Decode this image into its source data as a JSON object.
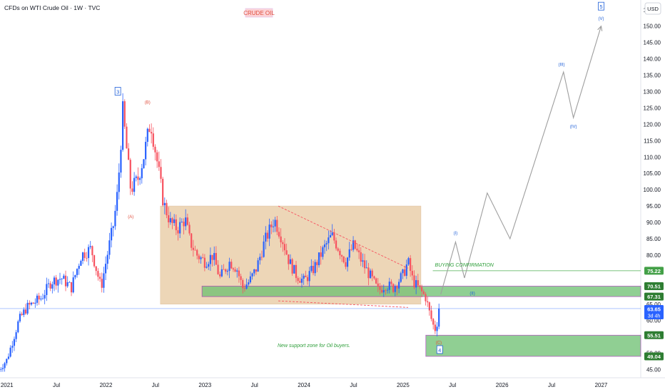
{
  "header": {
    "instrument": "CFDs on WTI Crude Oil · 1W · TVC",
    "chart_label": "CRUDE OIL",
    "currency": "USD"
  },
  "colors": {
    "up": "#2962ff",
    "down": "#f7525f",
    "price_line": "#2962ff",
    "range_box": "#e7c9a0",
    "zone": "#6cc070",
    "zone_border": "#9c27b0",
    "green_text": "#2e9e3a",
    "wave_blue": "#1e5fd8",
    "wave_red": "#e0503f",
    "projection": "#9e9e9e",
    "trend_dashed": "#f7525f",
    "confirm_line": "#4caf50"
  },
  "chart_data": {
    "type": "candlestick",
    "timeframe": "1W",
    "y_axis": {
      "min": 42.5,
      "max": 158,
      "ticks": [
        45,
        50,
        55,
        60,
        65,
        70,
        75,
        80,
        85,
        90,
        95,
        100,
        105,
        110,
        115,
        120,
        125,
        130,
        135,
        140,
        145,
        150,
        155
      ]
    },
    "x_axis": {
      "range": [
        "2020-12",
        "2027-07"
      ],
      "ticks": [
        {
          "label": "2021",
          "date": 2021.0
        },
        {
          "label": "Jul",
          "date": 2021.5
        },
        {
          "label": "2022",
          "date": 2022.0
        },
        {
          "label": "Jul",
          "date": 2022.5
        },
        {
          "label": "2023",
          "date": 2023.0
        },
        {
          "label": "Jul",
          "date": 2023.5
        },
        {
          "label": "2024",
          "date": 2024.0
        },
        {
          "label": "Jul",
          "date": 2024.5
        },
        {
          "label": "2025",
          "date": 2025.0
        },
        {
          "label": "Jul",
          "date": 2025.5
        },
        {
          "label": "2026",
          "date": 2026.0
        },
        {
          "label": "Jul",
          "date": 2026.5
        },
        {
          "label": "2027",
          "date": 2027.0
        }
      ]
    },
    "price_path": [
      [
        2020.92,
        45
      ],
      [
        2021.0,
        48
      ],
      [
        2021.12,
        60
      ],
      [
        2021.2,
        64
      ],
      [
        2021.35,
        67
      ],
      [
        2021.45,
        72
      ],
      [
        2021.55,
        73
      ],
      [
        2021.65,
        70
      ],
      [
        2021.75,
        80
      ],
      [
        2021.85,
        82
      ],
      [
        2021.95,
        70
      ],
      [
        2022.0,
        78
      ],
      [
        2022.08,
        90
      ],
      [
        2022.12,
        100
      ],
      [
        2022.17,
        124
      ],
      [
        2022.2,
        115
      ],
      [
        2022.25,
        100
      ],
      [
        2022.32,
        103
      ],
      [
        2022.38,
        110
      ],
      [
        2022.45,
        121
      ],
      [
        2022.52,
        108
      ],
      [
        2022.58,
        96
      ],
      [
        2022.65,
        90
      ],
      [
        2022.72,
        88
      ],
      [
        2022.8,
        91
      ],
      [
        2022.85,
        84
      ],
      [
        2022.92,
        80
      ],
      [
        2023.0,
        78
      ],
      [
        2023.08,
        80
      ],
      [
        2023.15,
        73
      ],
      [
        2023.25,
        78
      ],
      [
        2023.32,
        76
      ],
      [
        2023.38,
        70
      ],
      [
        2023.45,
        72
      ],
      [
        2023.52,
        76
      ],
      [
        2023.6,
        84
      ],
      [
        2023.7,
        91
      ],
      [
        2023.78,
        85
      ],
      [
        2023.85,
        78
      ],
      [
        2023.92,
        74
      ],
      [
        2024.0,
        72
      ],
      [
        2024.1,
        76
      ],
      [
        2024.2,
        82
      ],
      [
        2024.28,
        86
      ],
      [
        2024.35,
        82
      ],
      [
        2024.42,
        78
      ],
      [
        2024.5,
        83
      ],
      [
        2024.6,
        77
      ],
      [
        2024.68,
        73
      ],
      [
        2024.75,
        69
      ],
      [
        2024.82,
        71
      ],
      [
        2024.9,
        70
      ],
      [
        2025.0,
        74
      ],
      [
        2025.05,
        78
      ],
      [
        2025.1,
        72
      ],
      [
        2025.18,
        69
      ],
      [
        2025.23,
        67
      ],
      [
        2025.27,
        62
      ],
      [
        2025.32,
        57
      ],
      [
        2025.36,
        61
      ],
      [
        2025.38,
        63.65
      ]
    ],
    "current_price": {
      "value": 63.65,
      "countdown": "3d 4h"
    },
    "price_labels": [
      {
        "value": 75.22,
        "label": "75.22",
        "kind": "plain"
      },
      {
        "value": 70.51,
        "label": "70.51",
        "kind": "zone"
      },
      {
        "value": 67.31,
        "label": "67.31",
        "kind": "zone"
      },
      {
        "value": 55.51,
        "label": "55.51",
        "kind": "zone"
      },
      {
        "value": 49.04,
        "label": "49.04",
        "kind": "zone"
      }
    ],
    "range_box": {
      "x0": 2022.55,
      "x1": 2025.18,
      "y_low": 65,
      "y_high": 95
    },
    "upper_zone": {
      "x0": 2022.97,
      "x1": 2027.6,
      "y_low": 67.31,
      "y_high": 70.51
    },
    "lower_zone": {
      "x0": 2025.23,
      "x1": 2027.6,
      "y_low": 49.04,
      "y_high": 55.51
    },
    "buying_confirmation": {
      "x0": 2025.3,
      "x1": 2027.6,
      "value": 75.22,
      "label": "BUYING CONFIRMATION"
    },
    "support_text": {
      "label": "New support zone for Oil buyers.",
      "x": 2024.1,
      "y": 52.5
    },
    "trendline_upper": [
      [
        2023.74,
        95
      ],
      [
        2025.05,
        76
      ]
    ],
    "trendline_lower": [
      [
        2023.74,
        66
      ],
      [
        2025.05,
        64
      ]
    ],
    "projection": [
      [
        2025.38,
        68
      ],
      [
        2025.53,
        84
      ],
      [
        2025.62,
        73
      ],
      [
        2025.85,
        99
      ],
      [
        2026.08,
        85
      ],
      [
        2026.62,
        136
      ],
      [
        2026.72,
        122
      ],
      [
        2027.0,
        150
      ]
    ],
    "wave_labels": [
      {
        "text": "3",
        "boxed": true,
        "x": 2022.12,
        "y": 130,
        "color": "blue"
      },
      {
        "text": "(B)",
        "boxed": false,
        "x": 2022.42,
        "y": 127,
        "color": "red"
      },
      {
        "text": "(A)",
        "boxed": false,
        "x": 2022.25,
        "y": 92,
        "color": "red"
      },
      {
        "text": "(C)",
        "boxed": false,
        "x": 2025.36,
        "y": 53.5,
        "color": "red"
      },
      {
        "text": "4",
        "boxed": true,
        "x": 2025.37,
        "y": 51,
        "color": "blue"
      },
      {
        "text": "(I)",
        "boxed": false,
        "x": 2025.53,
        "y": 87,
        "color": "blue"
      },
      {
        "text": "(II)",
        "boxed": false,
        "x": 2025.7,
        "y": 68.5,
        "color": "blue"
      },
      {
        "text": "(III)",
        "boxed": false,
        "x": 2026.6,
        "y": 138.5,
        "color": "blue"
      },
      {
        "text": "(IV)",
        "boxed": false,
        "x": 2026.72,
        "y": 119.5,
        "color": "blue"
      },
      {
        "text": "(V)",
        "boxed": false,
        "x": 2027.0,
        "y": 152.5,
        "color": "blue"
      },
      {
        "text": "5",
        "boxed": true,
        "x": 2027.0,
        "y": 156,
        "color": "blue"
      }
    ]
  }
}
